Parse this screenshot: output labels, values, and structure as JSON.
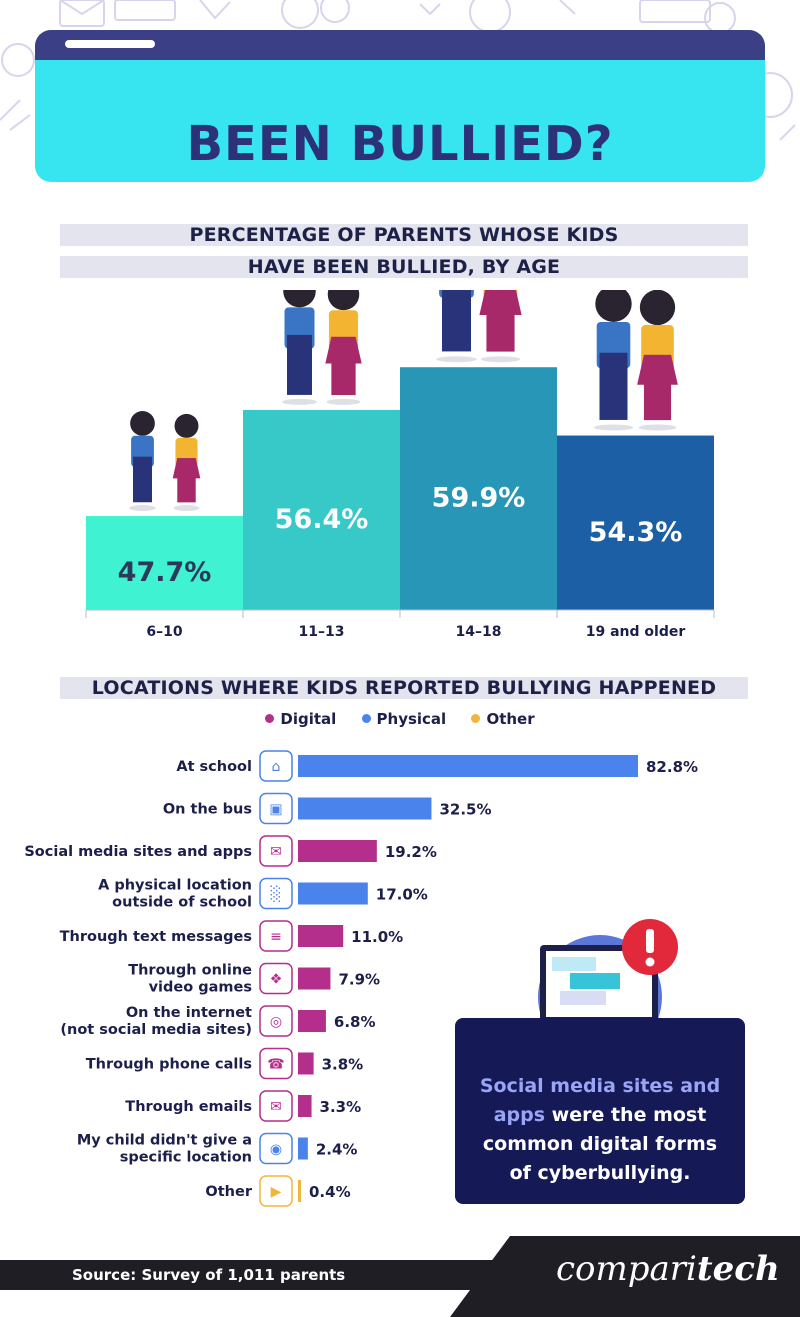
{
  "header": {
    "title": "BEEN BULLIED?"
  },
  "age_section": {
    "title_line1": "PERCENTAGE OF PARENTS WHOSE KIDS",
    "title_line2": "HAVE BEEN BULLIED, BY AGE"
  },
  "location_section": {
    "title": "LOCATIONS WHERE KIDS REPORTED BULLYING HAPPENED"
  },
  "legend": [
    {
      "label": "Digital",
      "color": "#b42e8c"
    },
    {
      "label": "Physical",
      "color": "#4a83ec"
    },
    {
      "label": "Other",
      "color": "#f1b53a"
    }
  ],
  "callout": {
    "highlight": "Social media sites and apps",
    "text": " were the most common digital forms of cyberbullying."
  },
  "footer": {
    "source": "Source: Survey of 1,011 parents",
    "brand_light": "compari",
    "brand_bold": "tech"
  },
  "chart_data": [
    {
      "type": "bar",
      "title": "PERCENTAGE OF PARENTS WHOSE KIDS HAVE BEEN BULLIED, BY AGE",
      "categories": [
        "6-10",
        "11-13",
        "14-18",
        "19 and older"
      ],
      "values": [
        47.7,
        56.4,
        59.9,
        54.3
      ],
      "labels": [
        "47.7%",
        "56.4%",
        "59.9%",
        "54.3%"
      ],
      "colors": [
        "#3ff2d2",
        "#36c9c7",
        "#2896b7",
        "#1c5fa4"
      ],
      "text_colors": [
        "#2b3a5a",
        "#ffffff",
        "#ffffff",
        "#ffffff"
      ]
    },
    {
      "type": "bar",
      "orientation": "horizontal",
      "title": "LOCATIONS WHERE KIDS REPORTED BULLYING HAPPENED",
      "categories": [
        "At school",
        "On the bus",
        "Social media sites and apps",
        "A physical location\noutside of school",
        "Through text messages",
        "Through online\nvideo games",
        "On the internet\n(not social media sites)",
        "Through phone calls",
        "Through emails",
        "My child didn't give a\nspecific location",
        "Other"
      ],
      "values": [
        82.8,
        32.5,
        19.2,
        17.0,
        11.0,
        7.9,
        6.8,
        3.8,
        3.3,
        2.4,
        0.4
      ],
      "labels": [
        "82.8%",
        "32.5%",
        "19.2%",
        "17.0%",
        "11.0%",
        "7.9%",
        "6.8%",
        "3.8%",
        "3.3%",
        "2.4%",
        "0.4%"
      ],
      "group": [
        "Physical",
        "Physical",
        "Digital",
        "Physical",
        "Digital",
        "Digital",
        "Digital",
        "Digital",
        "Digital",
        "Physical",
        "Other"
      ],
      "icons": [
        "school-icon",
        "bus-icon",
        "chat-icon",
        "buildings-icon",
        "text-messages-icon",
        "gamepad-icon",
        "globe-icon",
        "phone-icon",
        "email-icon",
        "location-pin-icon",
        "megaphone-icon"
      ],
      "xlim": [
        0,
        82.8
      ]
    }
  ]
}
